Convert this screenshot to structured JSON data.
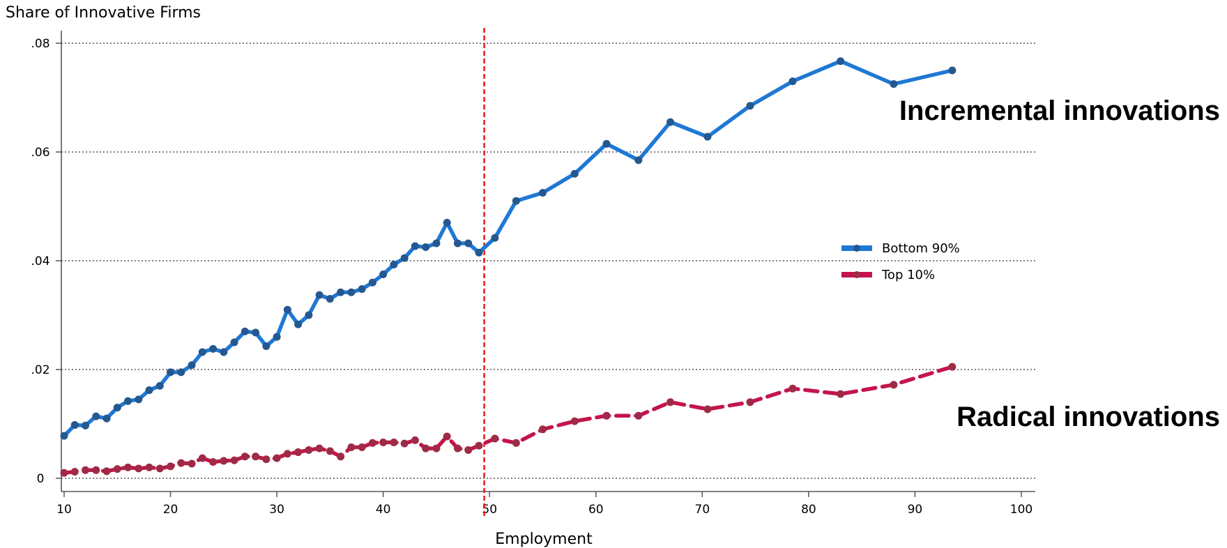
{
  "chart_data": {
    "type": "line",
    "title": "",
    "ylabel": "Share of Innovative Firms",
    "xlabel": "Employment",
    "xlim": [
      10,
      100
    ],
    "ylim": [
      0,
      0.08
    ],
    "xticks": [
      10,
      20,
      30,
      40,
      50,
      60,
      70,
      80,
      90,
      100
    ],
    "yticks": [
      {
        "value": 0,
        "label": "0"
      },
      {
        "value": 0.02,
        "label": ".02"
      },
      {
        "value": 0.04,
        "label": ".04"
      },
      {
        "value": 0.06,
        "label": ".06"
      },
      {
        "value": 0.08,
        "label": ".08"
      }
    ],
    "grid": "horizontal dotted",
    "legend_position": "right-middle",
    "reference_line": {
      "x": 49.5,
      "color": "#e41a1c",
      "style": "dashed"
    },
    "series": [
      {
        "name": "Bottom 90%",
        "color": "#1f78d4",
        "marker_color": "#24588f",
        "style": "solid",
        "annotation": "Incremental innovations",
        "points": [
          [
            10,
            0.0078
          ],
          [
            11,
            0.0098
          ],
          [
            12,
            0.0097
          ],
          [
            13,
            0.0114
          ],
          [
            14,
            0.011
          ],
          [
            15,
            0.013
          ],
          [
            16,
            0.0142
          ],
          [
            17,
            0.0145
          ],
          [
            18,
            0.0162
          ],
          [
            19,
            0.017
          ],
          [
            20,
            0.0195
          ],
          [
            21,
            0.0195
          ],
          [
            22,
            0.0208
          ],
          [
            23,
            0.0232
          ],
          [
            24,
            0.0238
          ],
          [
            25,
            0.0232
          ],
          [
            26,
            0.025
          ],
          [
            27,
            0.027
          ],
          [
            28,
            0.0268
          ],
          [
            29,
            0.0243
          ],
          [
            30,
            0.026
          ],
          [
            31,
            0.031
          ],
          [
            32,
            0.0283
          ],
          [
            33,
            0.03
          ],
          [
            34,
            0.0337
          ],
          [
            35,
            0.033
          ],
          [
            36,
            0.0342
          ],
          [
            37,
            0.0342
          ],
          [
            38,
            0.0348
          ],
          [
            39,
            0.036
          ],
          [
            40,
            0.0375
          ],
          [
            41,
            0.0393
          ],
          [
            42,
            0.0405
          ],
          [
            43,
            0.0427
          ],
          [
            44,
            0.0425
          ],
          [
            45,
            0.0432
          ],
          [
            46,
            0.047
          ],
          [
            47,
            0.0432
          ],
          [
            48,
            0.0432
          ],
          [
            49,
            0.0415
          ],
          [
            50.5,
            0.0442
          ],
          [
            52.5,
            0.051
          ],
          [
            55,
            0.0525
          ],
          [
            58,
            0.056
          ],
          [
            61,
            0.0615
          ],
          [
            64,
            0.0585
          ],
          [
            67,
            0.0655
          ],
          [
            70.5,
            0.0628
          ],
          [
            74.5,
            0.0685
          ],
          [
            78.5,
            0.073
          ],
          [
            83,
            0.0767
          ],
          [
            88,
            0.0725
          ],
          [
            93.5,
            0.075
          ]
        ]
      },
      {
        "name": "Top 10%",
        "color": "#c4144d",
        "marker_color": "#9e2b45",
        "style": "dashed",
        "annotation": "Radical innovations",
        "points": [
          [
            10,
            0.001
          ],
          [
            11,
            0.0012
          ],
          [
            12,
            0.0015
          ],
          [
            13,
            0.0015
          ],
          [
            14,
            0.0013
          ],
          [
            15,
            0.0017
          ],
          [
            16,
            0.002
          ],
          [
            17,
            0.0018
          ],
          [
            18,
            0.002
          ],
          [
            19,
            0.0018
          ],
          [
            20,
            0.0022
          ],
          [
            21,
            0.0028
          ],
          [
            22,
            0.0027
          ],
          [
            23,
            0.0037
          ],
          [
            24,
            0.003
          ],
          [
            25,
            0.0032
          ],
          [
            26,
            0.0033
          ],
          [
            27,
            0.004
          ],
          [
            28,
            0.004
          ],
          [
            29,
            0.0035
          ],
          [
            30,
            0.0037
          ],
          [
            31,
            0.0045
          ],
          [
            32,
            0.0048
          ],
          [
            33,
            0.0052
          ],
          [
            34,
            0.0055
          ],
          [
            35,
            0.005
          ],
          [
            36,
            0.004
          ],
          [
            37,
            0.0057
          ],
          [
            38,
            0.0057
          ],
          [
            39,
            0.0065
          ],
          [
            40,
            0.0066
          ],
          [
            41,
            0.0066
          ],
          [
            42,
            0.0064
          ],
          [
            43,
            0.007
          ],
          [
            44,
            0.0055
          ],
          [
            45,
            0.0055
          ],
          [
            46,
            0.0077
          ],
          [
            47,
            0.0055
          ],
          [
            48,
            0.0052
          ],
          [
            49,
            0.006
          ],
          [
            50.5,
            0.0073
          ],
          [
            52.5,
            0.0065
          ],
          [
            55,
            0.009
          ],
          [
            58,
            0.0105
          ],
          [
            61,
            0.0115
          ],
          [
            64,
            0.0115
          ],
          [
            67,
            0.014
          ],
          [
            70.5,
            0.0127
          ],
          [
            74.5,
            0.014
          ],
          [
            78.5,
            0.0165
          ],
          [
            83,
            0.0155
          ],
          [
            88,
            0.0172
          ],
          [
            93.5,
            0.0205
          ]
        ]
      }
    ]
  }
}
